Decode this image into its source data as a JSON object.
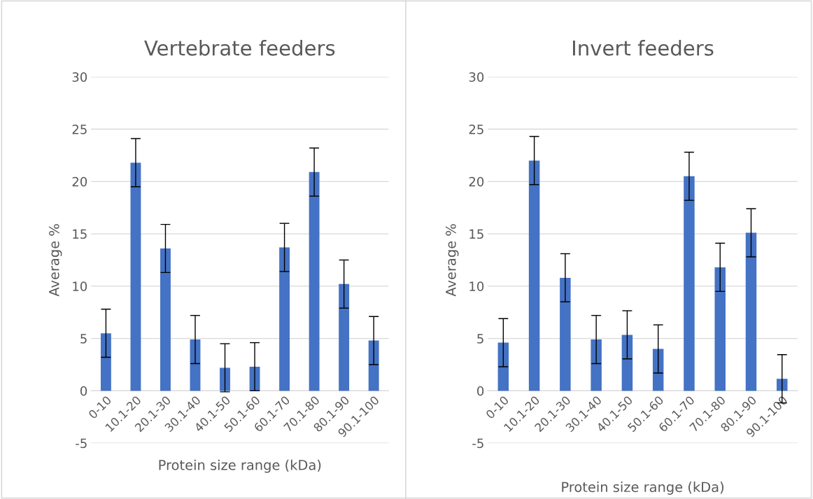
{
  "chart_data": [
    {
      "type": "bar",
      "title": "Vertebrate feeders",
      "xlabel": "Protein size range (kDa)",
      "ylabel": "Average %",
      "categories": [
        "0-10",
        "10.1-20",
        "20.1-30",
        "30.1-40",
        "40.1-50",
        "50.1-60",
        "60.1-70",
        "70.1-80",
        "80.1-90",
        "90.1-100"
      ],
      "color": "#4472c4",
      "values": [
        5.5,
        21.8,
        13.6,
        4.9,
        2.2,
        2.3,
        13.7,
        20.9,
        10.2,
        4.8
      ],
      "errors": [
        2.3,
        2.3,
        2.3,
        2.3,
        2.3,
        2.3,
        2.3,
        2.3,
        2.3,
        2.3
      ],
      "ylim": [
        -5,
        30
      ],
      "yticks": [
        -5,
        0,
        5,
        10,
        15,
        20,
        25,
        30
      ],
      "grid": "y"
    },
    {
      "type": "bar",
      "title": "Invert feeders",
      "xlabel": "Protein size range (kDa)",
      "ylabel": "Average %",
      "categories": [
        "0-10",
        "10.1-20",
        "20.1-30",
        "30.1-40",
        "40.1-50",
        "50.1-60",
        "60.1-70",
        "70.1-80",
        "80.1-90",
        "90.1-100"
      ],
      "color": "#4472c4",
      "values": [
        4.6,
        22.0,
        10.8,
        4.9,
        5.35,
        4.0,
        20.5,
        11.8,
        15.1,
        1.15
      ],
      "errors": [
        2.3,
        2.3,
        2.3,
        2.3,
        2.3,
        2.3,
        2.3,
        2.3,
        2.3,
        2.3
      ],
      "ylim": [
        -5,
        30
      ],
      "yticks": [
        -5,
        0,
        5,
        10,
        15,
        20,
        25,
        30
      ],
      "grid": "y"
    }
  ]
}
